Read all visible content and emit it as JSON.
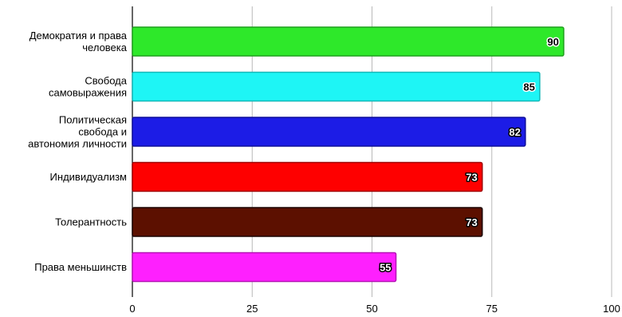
{
  "chart_data": {
    "type": "bar",
    "orientation": "horizontal",
    "categories": [
      [
        "Демократия и права",
        "человека"
      ],
      [
        "Свобода",
        "самовыражения"
      ],
      [
        "Политическая",
        "свобода и",
        "автономия личности"
      ],
      [
        "Индивидуализм"
      ],
      [
        "Толерантность"
      ],
      [
        "Права меньшинств"
      ]
    ],
    "values": [
      90,
      85,
      82,
      73,
      73,
      55
    ],
    "bar_colors": [
      "#2ee82a",
      "#1ef5f5",
      "#1c1ce6",
      "#fe0000",
      "#5c1000",
      "#fe20fe"
    ],
    "bar_edge_colors": [
      "#1fa01c",
      "#14b8b8",
      "#0e0e9a",
      "#a00000",
      "#1a0400",
      "#b414b4"
    ],
    "data_label_colors": [
      "#000000",
      "#000000",
      "#ffffff",
      "#ffffff",
      "#ffffff",
      "#ffffff"
    ],
    "data_labels_visible": true,
    "xlim": [
      0,
      100
    ],
    "xticks": [
      0,
      25,
      50,
      75,
      100
    ],
    "grid": "vertical",
    "title": "",
    "xlabel": "",
    "ylabel": "",
    "legend": "none"
  }
}
